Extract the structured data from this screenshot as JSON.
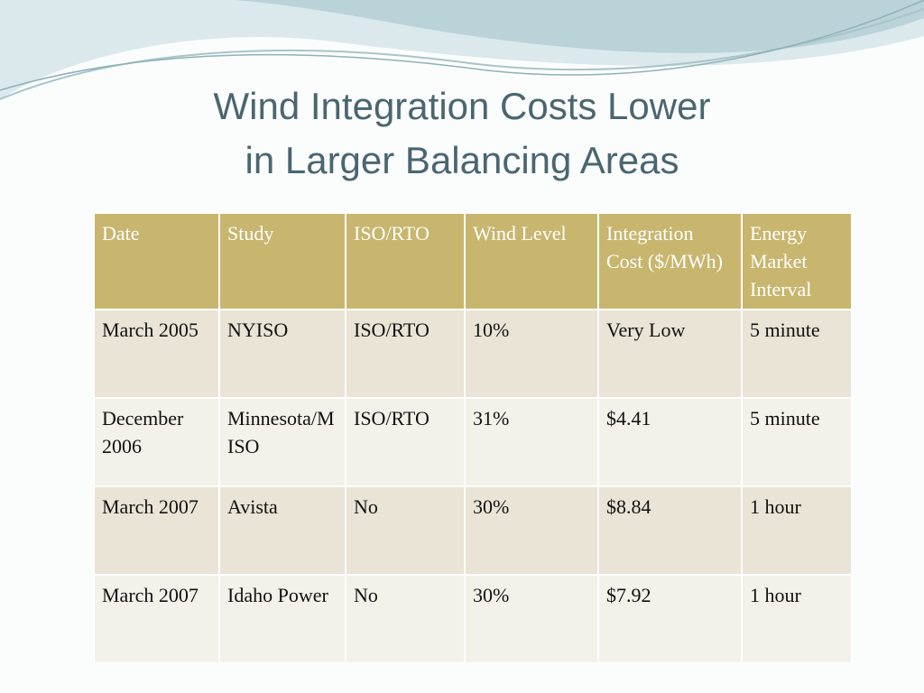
{
  "title": [
    "Wind Integration Costs Lower",
    "in Larger Balancing Areas"
  ],
  "table": {
    "header": [
      "Date",
      "Study",
      "ISO/RTO",
      "Wind Level",
      "Integration Cost ($/MWh)",
      "Energy Market Interval"
    ],
    "rows": [
      [
        "March 2005",
        "NYISO",
        "ISO/RTO",
        "10%",
        "Very Low",
        "5 minute"
      ],
      [
        "December 2006",
        "Minnesota/MISO",
        "ISO/RTO",
        "31%",
        "$4.41",
        "5 minute"
      ],
      [
        "March 2007",
        "Avista",
        "No",
        "30%",
        "$8.84",
        "1 hour"
      ],
      [
        "March 2007",
        "Idaho Power",
        "No",
        "30%",
        "$7.92",
        "1 hour"
      ]
    ]
  }
}
